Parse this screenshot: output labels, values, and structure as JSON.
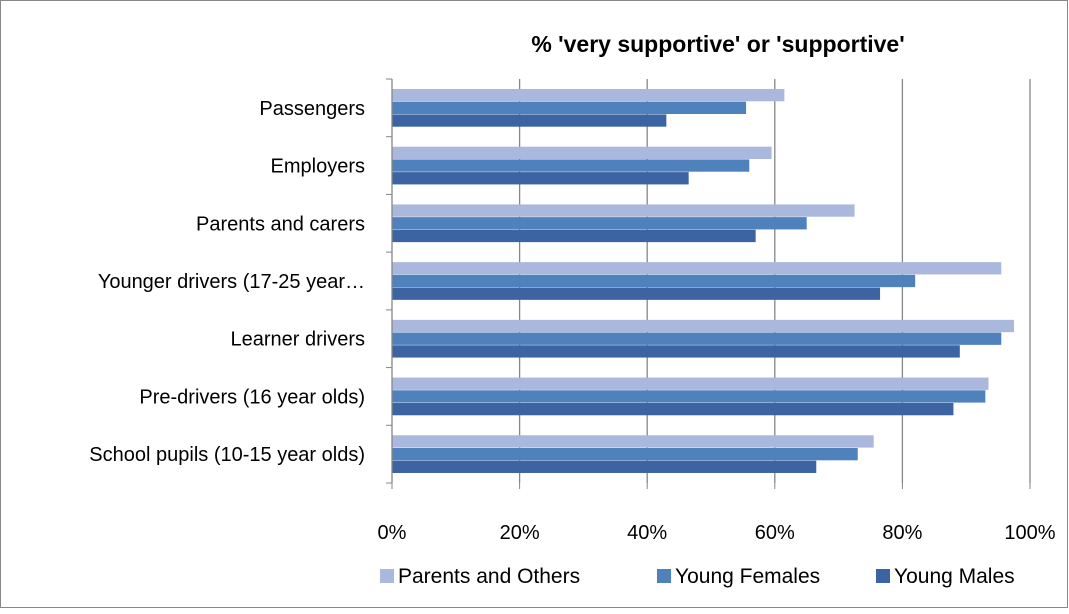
{
  "chart_data": {
    "type": "bar",
    "orientation": "horizontal",
    "title": "% 'very supportive' or 'supportive'",
    "xlabel": "",
    "ylabel": "",
    "xlim": [
      0,
      100
    ],
    "x_ticks": [
      "0%",
      "20%",
      "40%",
      "60%",
      "80%",
      "100%"
    ],
    "grid": "vertical major gridlines",
    "legend_position": "bottom",
    "categories": [
      "Passengers",
      "Employers",
      "Parents and carers",
      "Younger drivers (17-25 year…",
      "Learner drivers",
      "Pre-drivers (16 year olds)",
      "School pupils (10-15 year olds)"
    ],
    "series": [
      {
        "name": "Parents and Others",
        "color": "#a9b8dc",
        "values": [
          61.5,
          59.5,
          72.5,
          95.5,
          97.5,
          93.5,
          75.5
        ]
      },
      {
        "name": "Young Females",
        "color": "#4f81bd",
        "values": [
          55.5,
          56,
          65,
          82,
          95.5,
          93,
          73
        ]
      },
      {
        "name": "Young Males",
        "color": "#3c64a2",
        "values": [
          43,
          46.5,
          57,
          76.5,
          89,
          88,
          66.5
        ]
      }
    ]
  }
}
